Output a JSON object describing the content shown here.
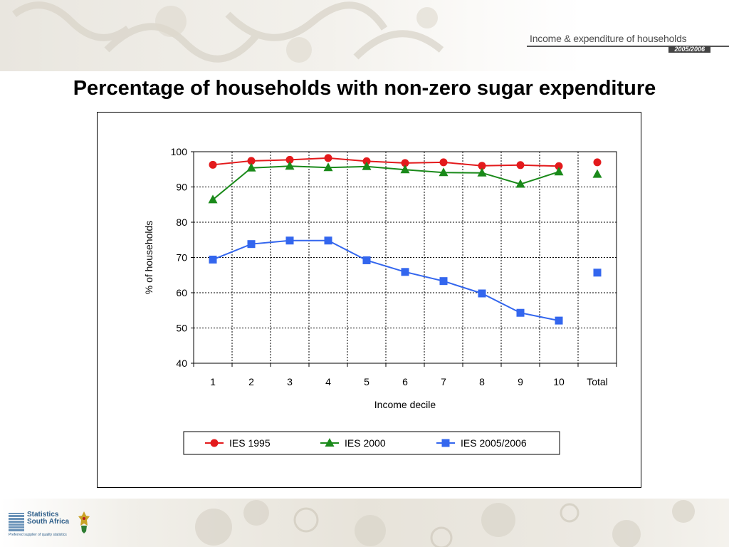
{
  "header": {
    "brand_title": "Income & expenditure of households",
    "brand_year": "2005/2006"
  },
  "slide": {
    "title": "Percentage of households with non-zero sugar expenditure"
  },
  "footer": {
    "logo_line1": "Statistics",
    "logo_line2": "South Africa",
    "logo_tagline": "Preferred supplier of quality statistics"
  },
  "colors": {
    "ies1995": "#e31a1c",
    "ies2000": "#1a8a1a",
    "ies2005": "#3366ee"
  },
  "chart_data": {
    "type": "line",
    "title": "",
    "xlabel": "Income decile",
    "ylabel": "% of households",
    "categories": [
      "1",
      "2",
      "3",
      "4",
      "5",
      "6",
      "7",
      "8",
      "9",
      "10",
      "Total"
    ],
    "ylim": [
      40,
      100
    ],
    "yticks": [
      "40",
      "50",
      "60",
      "70",
      "80",
      "90",
      "100"
    ],
    "grid": true,
    "legend_position": "bottom",
    "series": [
      {
        "name": "IES 1995",
        "marker": "circle",
        "color": "#e31a1c",
        "values": [
          96.3,
          97.4,
          97.7,
          98.2,
          97.3,
          96.8,
          97.0,
          96.0,
          96.2,
          95.9,
          97.0
        ]
      },
      {
        "name": "IES 2000",
        "marker": "triangle",
        "color": "#1a8a1a",
        "values": [
          86.4,
          95.4,
          95.9,
          95.5,
          95.8,
          94.9,
          94.1,
          94.0,
          90.8,
          94.3,
          93.6
        ]
      },
      {
        "name": "IES 2005/2006",
        "marker": "square",
        "color": "#3366ee",
        "values": [
          69.4,
          73.8,
          74.8,
          74.8,
          69.2,
          65.9,
          63.3,
          59.8,
          54.3,
          52.1,
          65.7
        ]
      }
    ]
  }
}
